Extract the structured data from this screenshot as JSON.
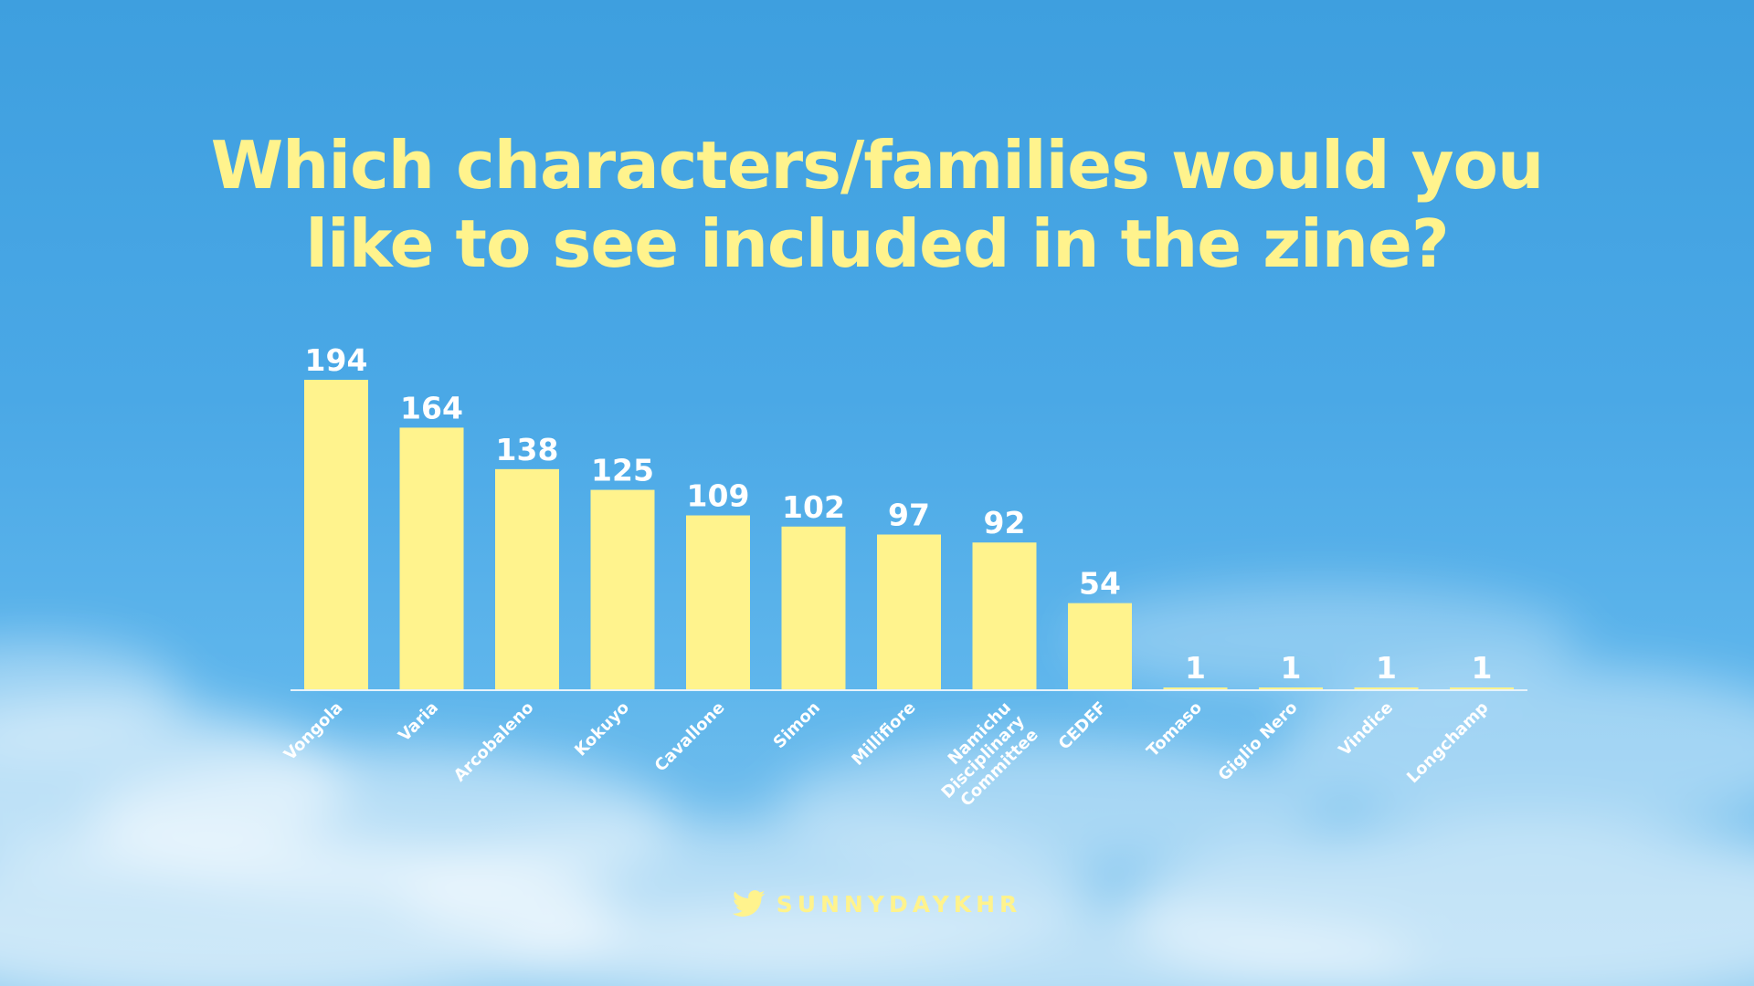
{
  "title_lines": [
    "Which characters/families would you",
    "like to see included in the zine?"
  ],
  "footer": {
    "handle": "SUNNYDAYKHR",
    "icon": "twitter-bird-icon"
  },
  "colors": {
    "bar": "#fff38d",
    "title": "#fff38d",
    "value_labels": "#ffffff",
    "category_labels": "#ffffff",
    "axis": "#e6f3fb"
  },
  "chart_data": {
    "type": "bar",
    "title": "Which characters/families would you like to see included in the zine?",
    "xlabel": "",
    "ylabel": "",
    "categories": [
      "Vongola",
      "Varia",
      "Arcobaleno",
      "Kokuyo",
      "Cavallone",
      "Simon",
      "Millifiore",
      "Namichu Disciplinary Committee",
      "CEDEF",
      "Tomaso",
      "Giglio Nero",
      "Vindice",
      "Longchamp"
    ],
    "category_label_lines": [
      [
        "Vongola"
      ],
      [
        "Varia"
      ],
      [
        "Arcobaleno"
      ],
      [
        "Kokuyo"
      ],
      [
        "Cavallone"
      ],
      [
        "Simon"
      ],
      [
        "Millifiore"
      ],
      [
        "Namichu",
        "Disciplinary",
        "Committee"
      ],
      [
        "CEDEF"
      ],
      [
        "Tomaso"
      ],
      [
        "Giglio Nero"
      ],
      [
        "Vindice"
      ],
      [
        "Longchamp"
      ]
    ],
    "values": [
      194,
      164,
      138,
      125,
      109,
      102,
      97,
      92,
      54,
      1,
      1,
      1,
      1
    ],
    "ylim": [
      0,
      194
    ],
    "grid": false,
    "legend": "none",
    "data_labels": true
  }
}
